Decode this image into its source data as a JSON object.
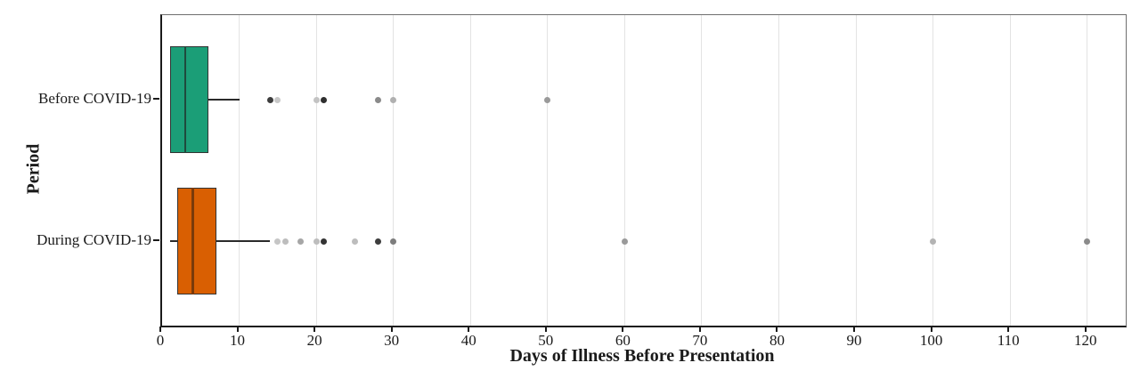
{
  "figure": {
    "background": "#ffffff",
    "axis_color": "#1a1a1a",
    "panel_border_color": "#6f6f6f",
    "gridline_color": "#e3e3e3",
    "box_border_color": "#333333",
    "whisker_color": "#2a2a2a"
  },
  "chart_data": {
    "type": "boxplot",
    "orientation": "horizontal",
    "title": "",
    "xlabel": "Days of Illness Before Presentation",
    "ylabel": "Period",
    "categories": [
      "Before COVID-19",
      "During COVID-19"
    ],
    "xlim": [
      0,
      125
    ],
    "x_ticks": [
      0,
      10,
      20,
      30,
      40,
      50,
      60,
      70,
      80,
      90,
      100,
      110,
      120
    ],
    "grid": "vertical-major-only",
    "legend": "none",
    "series": [
      {
        "name": "Before COVID-19",
        "fill": "#1b9e77",
        "median_color": "#1f4a3d",
        "whisker_low": 1,
        "q1": 1,
        "median": 3,
        "q3": 6,
        "whisker_high": 10,
        "outliers": [
          {
            "value": 14,
            "color": "#3d3d3d"
          },
          {
            "value": 15,
            "color": "#c8c8c8"
          },
          {
            "value": 20,
            "color": "#c3c3c3"
          },
          {
            "value": 21,
            "color": "#2f2f2f"
          },
          {
            "value": 28,
            "color": "#8a8a8a"
          },
          {
            "value": 30,
            "color": "#b0b0b0"
          },
          {
            "value": 50,
            "color": "#9a9a9a"
          }
        ]
      },
      {
        "name": "During COVID-19",
        "fill": "#d95f02",
        "median_color": "#7a3a0a",
        "whisker_low": 1,
        "q1": 2,
        "median": 4,
        "q3": 7,
        "whisker_high": 14,
        "outliers": [
          {
            "value": 15,
            "color": "#c6c6c6"
          },
          {
            "value": 16,
            "color": "#bdbdbd"
          },
          {
            "value": 18,
            "color": "#a6a6a6"
          },
          {
            "value": 20,
            "color": "#bdbdbd"
          },
          {
            "value": 21,
            "color": "#333333"
          },
          {
            "value": 25,
            "color": "#bdbdbd"
          },
          {
            "value": 28,
            "color": "#3d3d3d"
          },
          {
            "value": 30,
            "color": "#7d7d7d"
          },
          {
            "value": 60,
            "color": "#9a9a9a"
          },
          {
            "value": 100,
            "color": "#b3b3b3"
          },
          {
            "value": 120,
            "color": "#8a8a8a"
          }
        ]
      }
    ]
  }
}
